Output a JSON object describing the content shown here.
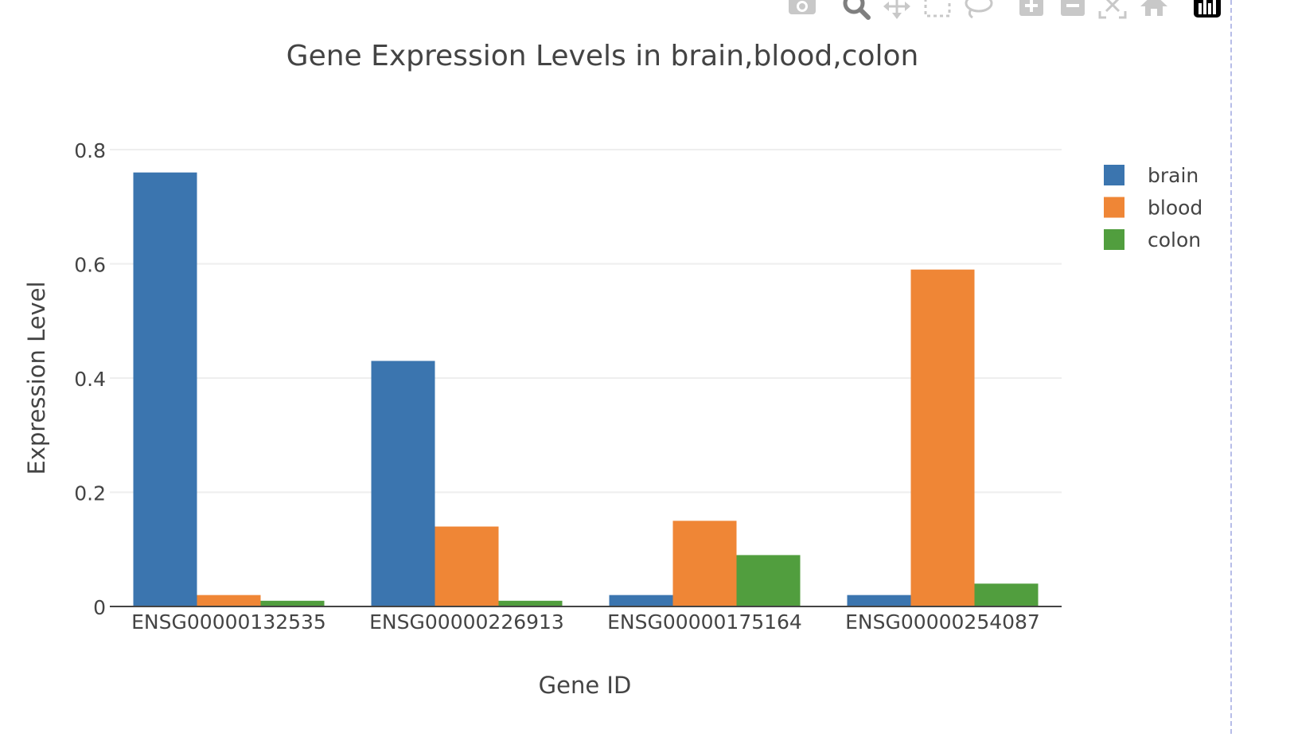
{
  "modebar": {
    "buttons": [
      {
        "name": "camera-icon",
        "title": "Download plot as a png"
      },
      {
        "name": "zoom-icon",
        "title": "Zoom"
      },
      {
        "name": "pan-icon",
        "title": "Pan"
      },
      {
        "name": "box-select-icon",
        "title": "Box Select"
      },
      {
        "name": "lasso-select-icon",
        "title": "Lasso Select"
      },
      {
        "name": "zoom-in-icon",
        "title": "Zoom in"
      },
      {
        "name": "zoom-out-icon",
        "title": "Zoom out"
      },
      {
        "name": "autoscale-icon",
        "title": "Autoscale"
      },
      {
        "name": "reset-axes-icon",
        "title": "Reset axes"
      },
      {
        "name": "plotly-logo-icon",
        "title": "Produced with Plotly"
      }
    ],
    "icon_color": "#c8c8c8",
    "logo_color": "#000000"
  },
  "chart_data": {
    "type": "bar",
    "title": "Gene Expression Levels in brain,blood,colon",
    "xlabel": "Gene ID",
    "ylabel": "Expression Level",
    "categories": [
      "ENSG00000132535",
      "ENSG00000226913",
      "ENSG00000175164",
      "ENSG00000254087"
    ],
    "series": [
      {
        "name": "brain",
        "color": "#3b75af",
        "values": [
          0.76,
          0.43,
          0.02,
          0.02
        ]
      },
      {
        "name": "blood",
        "color": "#ef8636",
        "values": [
          0.02,
          0.14,
          0.15,
          0.59
        ]
      },
      {
        "name": "colon",
        "color": "#519e3e",
        "values": [
          0.01,
          0.01,
          0.09,
          0.04
        ]
      }
    ],
    "ylim": [
      0,
      0.8
    ],
    "yticks": [
      0,
      0.2,
      0.4,
      0.6,
      0.8
    ],
    "ytick_labels": [
      "0",
      "0.2",
      "0.4",
      "0.6",
      "0.8"
    ],
    "grid": true,
    "legend_position": "top-right"
  }
}
